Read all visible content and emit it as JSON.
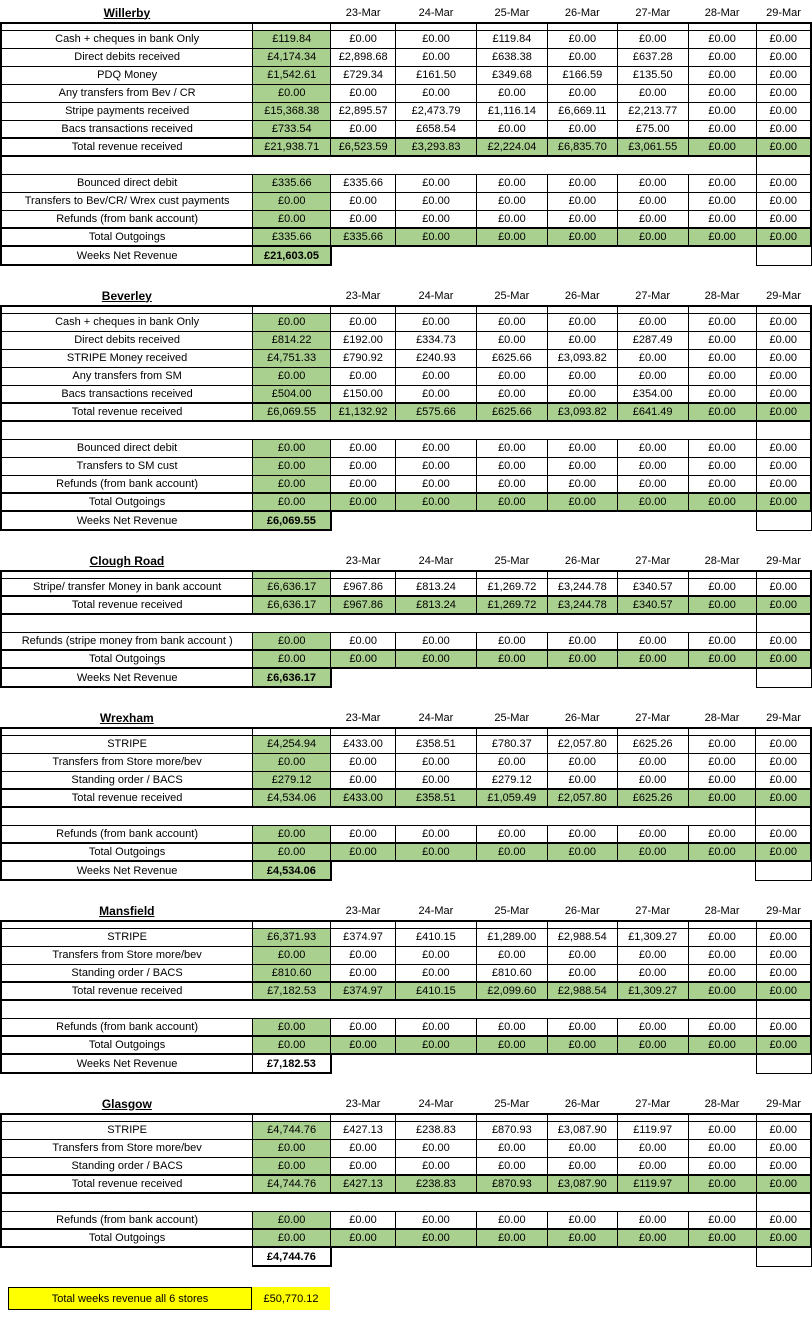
{
  "colors": {
    "highlight_green": "#A9D08E",
    "highlight_yellow": "#FFFF00",
    "border": "#000000"
  },
  "dates": [
    "23-Mar",
    "24-Mar",
    "25-Mar",
    "26-Mar",
    "27-Mar",
    "28-Mar",
    "29-Mar"
  ],
  "sections": [
    {
      "title": "Willerby",
      "spacer_green": false,
      "revenue_rows": [
        {
          "label": "Cash + cheques in bank Only",
          "total": "£119.84",
          "days": [
            "£0.00",
            "£0.00",
            "£119.84",
            "£0.00",
            "£0.00",
            "£0.00",
            "£0.00"
          ]
        },
        {
          "label": "Direct debits received",
          "total": "£4,174.34",
          "days": [
            "£2,898.68",
            "£0.00",
            "£638.38",
            "£0.00",
            "£637.28",
            "£0.00",
            "£0.00"
          ]
        },
        {
          "label": "PDQ Money",
          "total": "£1,542.61",
          "days": [
            "£729.34",
            "£161.50",
            "£349.68",
            "£166.59",
            "£135.50",
            "£0.00",
            "£0.00"
          ]
        },
        {
          "label": "Any transfers from Bev / CR",
          "total": "£0.00",
          "days": [
            "£0.00",
            "£0.00",
            "£0.00",
            "£0.00",
            "£0.00",
            "£0.00",
            "£0.00"
          ]
        },
        {
          "label": "Stripe payments received",
          "total": "£15,368.38",
          "days": [
            "£2,895.57",
            "£2,473.79",
            "£1,116.14",
            "£6,669.11",
            "£2,213.77",
            "£0.00",
            "£0.00"
          ]
        },
        {
          "label": "Bacs transactions received",
          "total": "£733.54",
          "days": [
            "£0.00",
            "£658.54",
            "£0.00",
            "£0.00",
            "£75.00",
            "£0.00",
            "£0.00"
          ]
        }
      ],
      "total_revenue": {
        "label": "Total revenue received",
        "total": "£21,938.71",
        "days": [
          "£6,523.59",
          "£3,293.83",
          "£2,224.04",
          "£6,835.70",
          "£3,061.55",
          "£0.00",
          "£0.00"
        ]
      },
      "outgoing_rows": [
        {
          "label": "Bounced direct debit",
          "total": "£335.66",
          "days": [
            "£335.66",
            "£0.00",
            "£0.00",
            "£0.00",
            "£0.00",
            "£0.00",
            "£0.00"
          ]
        },
        {
          "label": "Transfers to Bev/CR/ Wrex  cust payments",
          "total": "£0.00",
          "days": [
            "£0.00",
            "£0.00",
            "£0.00",
            "£0.00",
            "£0.00",
            "£0.00",
            "£0.00"
          ]
        },
        {
          "label": "Refunds (from bank account)",
          "total": "£0.00",
          "days": [
            "£0.00",
            "£0.00",
            "£0.00",
            "£0.00",
            "£0.00",
            "£0.00",
            "£0.00"
          ]
        }
      ],
      "total_outgoings": {
        "label": "Total Outgoings",
        "total": "£335.66",
        "days": [
          "£335.66",
          "£0.00",
          "£0.00",
          "£0.00",
          "£0.00",
          "£0.00",
          "£0.00"
        ]
      },
      "weeks_net": {
        "label": "Weeks Net Revenue",
        "total": "£21,603.05",
        "green": true
      }
    },
    {
      "title": "Beverley",
      "spacer_green": false,
      "revenue_rows": [
        {
          "label": "Cash + cheques in bank Only",
          "total": "£0.00",
          "days": [
            "£0.00",
            "£0.00",
            "£0.00",
            "£0.00",
            "£0.00",
            "£0.00",
            "£0.00"
          ]
        },
        {
          "label": "Direct debits received",
          "total": "£814.22",
          "days": [
            "£192.00",
            "£334.73",
            "£0.00",
            "£0.00",
            "£287.49",
            "£0.00",
            "£0.00"
          ]
        },
        {
          "label": "STRIPE Money received",
          "total": "£4,751.33",
          "days": [
            "£790.92",
            "£240.93",
            "£625.66",
            "£3,093.82",
            "£0.00",
            "£0.00",
            "£0.00"
          ]
        },
        {
          "label": "Any transfers from SM",
          "total": "£0.00",
          "days": [
            "£0.00",
            "£0.00",
            "£0.00",
            "£0.00",
            "£0.00",
            "£0.00",
            "£0.00"
          ]
        },
        {
          "label": "Bacs transactions received",
          "total": "£504.00",
          "days": [
            "£150.00",
            "£0.00",
            "£0.00",
            "£0.00",
            "£354.00",
            "£0.00",
            "£0.00"
          ]
        }
      ],
      "total_revenue": {
        "label": "Total revenue received",
        "total": "£6,069.55",
        "days": [
          "£1,132.92",
          "£575.66",
          "£625.66",
          "£3,093.82",
          "£641.49",
          "£0.00",
          "£0.00"
        ]
      },
      "outgoing_rows": [
        {
          "label": "Bounced direct debit",
          "total": "£0.00",
          "days": [
            "£0.00",
            "£0.00",
            "£0.00",
            "£0.00",
            "£0.00",
            "£0.00",
            "£0.00"
          ]
        },
        {
          "label": "Transfers to SM cust",
          "total": "£0.00",
          "days": [
            "£0.00",
            "£0.00",
            "£0.00",
            "£0.00",
            "£0.00",
            "£0.00",
            "£0.00"
          ]
        },
        {
          "label": "Refunds (from bank account)",
          "total": "£0.00",
          "days": [
            "£0.00",
            "£0.00",
            "£0.00",
            "£0.00",
            "£0.00",
            "£0.00",
            "£0.00"
          ]
        }
      ],
      "total_outgoings": {
        "label": "Total Outgoings",
        "total": "£0.00",
        "days": [
          "£0.00",
          "£0.00",
          "£0.00",
          "£0.00",
          "£0.00",
          "£0.00",
          "£0.00"
        ]
      },
      "weeks_net": {
        "label": "Weeks Net Revenue",
        "total": "£6,069.55",
        "green": true
      }
    },
    {
      "title": "Clough Road",
      "spacer_green": true,
      "revenue_rows": [
        {
          "label": "Stripe/ transfer Money  in bank account",
          "total": "£6,636.17",
          "days": [
            "£967.86",
            "£813.24",
            "£1,269.72",
            "£3,244.78",
            "£340.57",
            "£0.00",
            "£0.00"
          ]
        }
      ],
      "total_revenue": {
        "label": "Total revenue received",
        "total": "£6,636.17",
        "days": [
          "£967.86",
          "£813.24",
          "£1,269.72",
          "£3,244.78",
          "£340.57",
          "£0.00",
          "£0.00"
        ]
      },
      "outgoing_rows": [
        {
          "label": "Refunds (stripe money from bank account )",
          "total": "£0.00",
          "days": [
            "£0.00",
            "£0.00",
            "£0.00",
            "£0.00",
            "£0.00",
            "£0.00",
            "£0.00"
          ]
        }
      ],
      "total_outgoings": {
        "label": "Total Outgoings",
        "total": "£0.00",
        "days": [
          "£0.00",
          "£0.00",
          "£0.00",
          "£0.00",
          "£0.00",
          "£0.00",
          "£0.00"
        ]
      },
      "weeks_net": {
        "label": "Weeks Net Revenue",
        "total": "£6,636.17",
        "green": true
      }
    },
    {
      "title": "Wrexham",
      "spacer_green": false,
      "revenue_rows": [
        {
          "label": "STRIPE",
          "total": "£4,254.94",
          "days": [
            "£433.00",
            "£358.51",
            "£780.37",
            "£2,057.80",
            "£625.26",
            "£0.00",
            "£0.00"
          ]
        },
        {
          "label": "Transfers from Store more/bev",
          "total": "£0.00",
          "days": [
            "£0.00",
            "£0.00",
            "£0.00",
            "£0.00",
            "£0.00",
            "£0.00",
            "£0.00"
          ]
        },
        {
          "label": "Standing order / BACS",
          "total": "£279.12",
          "days": [
            "£0.00",
            "£0.00",
            "£279.12",
            "£0.00",
            "£0.00",
            "£0.00",
            "£0.00"
          ]
        }
      ],
      "total_revenue": {
        "label": "Total revenue received",
        "total": "£4,534.06",
        "days": [
          "£433.00",
          "£358.51",
          "£1,059.49",
          "£2,057.80",
          "£625.26",
          "£0.00",
          "£0.00"
        ]
      },
      "outgoing_rows": [
        {
          "label": "Refunds (from bank account)",
          "total": "£0.00",
          "days": [
            "£0.00",
            "£0.00",
            "£0.00",
            "£0.00",
            "£0.00",
            "£0.00",
            "£0.00"
          ]
        }
      ],
      "total_outgoings": {
        "label": "Total Outgoings",
        "total": "£0.00",
        "days": [
          "£0.00",
          "£0.00",
          "£0.00",
          "£0.00",
          "£0.00",
          "£0.00",
          "£0.00"
        ]
      },
      "weeks_net": {
        "label": "Weeks Net Revenue",
        "total": "£4,534.06",
        "green": true
      }
    },
    {
      "title": "Mansfield",
      "spacer_green": false,
      "revenue_rows": [
        {
          "label": "STRIPE",
          "total": "£6,371.93",
          "days": [
            "£374.97",
            "£410.15",
            "£1,289.00",
            "£2,988.54",
            "£1,309.27",
            "£0.00",
            "£0.00"
          ]
        },
        {
          "label": "Transfers from Store more/bev",
          "total": "£0.00",
          "days": [
            "£0.00",
            "£0.00",
            "£0.00",
            "£0.00",
            "£0.00",
            "£0.00",
            "£0.00"
          ]
        },
        {
          "label": "Standing order / BACS",
          "total": "£810.60",
          "days": [
            "£0.00",
            "£0.00",
            "£810.60",
            "£0.00",
            "£0.00",
            "£0.00",
            "£0.00"
          ]
        }
      ],
      "total_revenue": {
        "label": "Total revenue received",
        "total": "£7,182.53",
        "days": [
          "£374.97",
          "£410.15",
          "£2,099.60",
          "£2,988.54",
          "£1,309.27",
          "£0.00",
          "£0.00"
        ]
      },
      "outgoing_rows": [
        {
          "label": "Refunds (from bank account)",
          "total": "£0.00",
          "days": [
            "£0.00",
            "£0.00",
            "£0.00",
            "£0.00",
            "£0.00",
            "£0.00",
            "£0.00"
          ]
        }
      ],
      "total_outgoings": {
        "label": "Total Outgoings",
        "total": "£0.00",
        "days": [
          "£0.00",
          "£0.00",
          "£0.00",
          "£0.00",
          "£0.00",
          "£0.00",
          "£0.00"
        ]
      },
      "weeks_net": {
        "label": "Weeks Net Revenue",
        "total": "£7,182.53",
        "green": false
      }
    },
    {
      "title": "Glasgow",
      "spacer_green": false,
      "revenue_rows": [
        {
          "label": "STRIPE",
          "total": "£4,744.76",
          "days": [
            "£427.13",
            "£238.83",
            "£870.93",
            "£3,087.90",
            "£119.97",
            "£0.00",
            "£0.00"
          ]
        },
        {
          "label": "Transfers from Store more/bev",
          "total": "£0.00",
          "days": [
            "£0.00",
            "£0.00",
            "£0.00",
            "£0.00",
            "£0.00",
            "£0.00",
            "£0.00"
          ]
        },
        {
          "label": "Standing order / BACS",
          "total": "£0.00",
          "days": [
            "£0.00",
            "£0.00",
            "£0.00",
            "£0.00",
            "£0.00",
            "£0.00",
            "£0.00"
          ]
        }
      ],
      "total_revenue": {
        "label": "Total revenue received",
        "total": "£4,744.76",
        "days": [
          "£427.13",
          "£238.83",
          "£870.93",
          "£3,087.90",
          "£119.97",
          "£0.00",
          "£0.00"
        ]
      },
      "outgoing_rows": [
        {
          "label": "Refunds (from bank account)",
          "total": "£0.00",
          "days": [
            "£0.00",
            "£0.00",
            "£0.00",
            "£0.00",
            "£0.00",
            "£0.00",
            "£0.00"
          ]
        }
      ],
      "total_outgoings": {
        "label": "Total Outgoings",
        "total": "£0.00",
        "days": [
          "£0.00",
          "£0.00",
          "£0.00",
          "£0.00",
          "£0.00",
          "£0.00",
          "£0.00"
        ]
      },
      "weeks_net": {
        "label": "",
        "total": "£4,744.76",
        "green": false
      }
    }
  ],
  "grand_total": {
    "label": "Total weeks revenue all 6 stores",
    "value": "£50,770.12"
  }
}
